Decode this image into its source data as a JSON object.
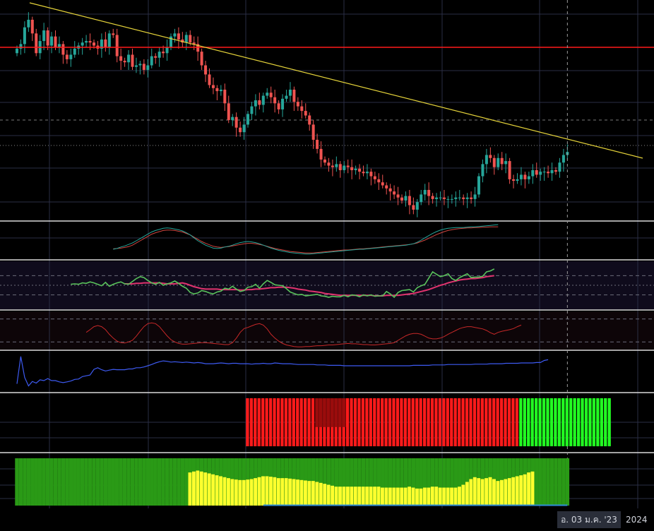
{
  "axis": {
    "crosshair_date_label": "อ. 03 ม.ค. '23",
    "year_label": "2024"
  },
  "colors": {
    "background": "#000000",
    "grid": "#2a2e45",
    "candle_up": "#26a69a",
    "candle_down": "#ef5350",
    "trendline": "#e5d33a",
    "horizontal_line": "#ff1a1a",
    "divider": "#d9d9d9",
    "osc1_a": "#26a69a",
    "osc1_b": "#d0453f",
    "rsi_line": "#59c25b",
    "rsi_ma": "#e0336e",
    "osc3": "#c62828",
    "osc4": "#3d5af1",
    "bar_red": "#ff1a1a",
    "bar_green": "#22ff22",
    "area_green": "#2a9a16",
    "area_yellow": "#ffff2e"
  },
  "chart_data": {
    "type": "candlestick",
    "price": {
      "closes": [
        78,
        81,
        92,
        97,
        88,
        75,
        83,
        90,
        80,
        86,
        79,
        81,
        74,
        71,
        74,
        78,
        80,
        82,
        83,
        82,
        80,
        78,
        84,
        79,
        88,
        87,
        73,
        70,
        69,
        74,
        66,
        67,
        68,
        64,
        67,
        73,
        72,
        76,
        75,
        79,
        86,
        88,
        84,
        82,
        87,
        82,
        81,
        76,
        67,
        61,
        54,
        52,
        50,
        51,
        42,
        31,
        33,
        26,
        23,
        28,
        35,
        40,
        44,
        41,
        47,
        49,
        46,
        42,
        38,
        45,
        47,
        51,
        43,
        40,
        37,
        34,
        28,
        18,
        12,
        5,
        3,
        1,
        0,
        2,
        -2,
        1,
        0,
        -2,
        -1,
        -3,
        -4,
        -3,
        -6,
        -8,
        -10,
        -12,
        -14,
        -16,
        -18,
        -20,
        -22,
        -19,
        -25,
        -28,
        -23,
        -18,
        -15,
        -19,
        -21,
        -20,
        -20,
        -21,
        -21,
        -21,
        -20,
        -20,
        -21,
        -20,
        -21,
        -18,
        -6,
        2,
        8,
        6,
        0,
        6,
        2,
        4,
        -8,
        -9,
        -8,
        -5,
        -8,
        -6,
        -2,
        -5,
        -3,
        -3,
        -4,
        -2,
        -3,
        3,
        8,
        10
      ],
      "trendline_label": "",
      "horizontal_level_label": ""
    },
    "oscillator_1": {
      "start_index": 25,
      "line_a": [
        27,
        29,
        33,
        36,
        40,
        44,
        50,
        56,
        62,
        68,
        74,
        78,
        81,
        84,
        85,
        84,
        82,
        80,
        77,
        72,
        66,
        58,
        50,
        44,
        38,
        34,
        30,
        29,
        30,
        33,
        35,
        38,
        42,
        45,
        47,
        48,
        47,
        45,
        42,
        38,
        34,
        30,
        27,
        24,
        22,
        20,
        18,
        17,
        16,
        15,
        14,
        14,
        15,
        16,
        17,
        18,
        19,
        20,
        21,
        22,
        23,
        24,
        25,
        26,
        27,
        27,
        28,
        29,
        30,
        31,
        32,
        33,
        34,
        35,
        36,
        37,
        38,
        40,
        42,
        46,
        52,
        58,
        64,
        70,
        75,
        79,
        82,
        84,
        85,
        86,
        86,
        86,
        87,
        88,
        88,
        89,
        90,
        91,
        92,
        93,
        94
      ],
      "line_b": [
        28,
        29,
        30,
        32,
        34,
        38,
        44,
        50,
        56,
        62,
        68,
        72,
        75,
        78,
        79,
        79,
        78,
        76,
        74,
        70,
        66,
        60,
        54,
        48,
        43,
        39,
        35,
        33,
        32,
        33,
        34,
        36,
        38,
        40,
        42,
        43,
        43,
        42,
        40,
        38,
        35,
        32,
        29,
        27,
        25,
        23,
        21,
        20,
        19,
        18,
        17,
        17,
        17,
        18,
        19,
        20,
        21,
        22,
        23,
        24,
        25,
        25,
        26,
        27,
        28,
        28,
        29,
        30,
        31,
        32,
        33,
        34,
        35,
        36,
        37,
        38,
        39,
        40,
        42,
        44,
        48,
        52,
        57,
        62,
        67,
        71,
        75,
        78,
        80,
        82,
        83,
        84,
        85,
        85,
        86,
        86,
        87,
        87,
        88,
        88,
        88
      ]
    },
    "rsi": {
      "start_index": 14,
      "levels": [
        70,
        50,
        30
      ],
      "values": [
        52,
        53,
        52,
        55,
        54,
        57,
        55,
        52,
        49,
        56,
        48,
        52,
        55,
        57,
        53,
        52,
        58,
        64,
        68,
        66,
        60,
        55,
        52,
        56,
        50,
        53,
        55,
        59,
        54,
        48,
        44,
        35,
        32,
        34,
        39,
        37,
        34,
        32,
        36,
        38,
        44,
        42,
        48,
        42,
        37,
        39,
        46,
        47,
        52,
        44,
        53,
        60,
        56,
        51,
        50,
        49,
        43,
        36,
        33,
        30,
        31,
        28,
        29,
        30,
        31,
        28,
        27,
        25,
        27,
        26,
        26,
        29,
        26,
        30,
        29,
        26,
        30,
        28,
        30,
        27,
        28,
        28,
        37,
        32,
        25,
        35,
        39,
        40,
        41,
        36,
        45,
        49,
        52,
        65,
        78,
        73,
        68,
        70,
        74,
        64,
        60,
        66,
        70,
        74,
        66,
        67,
        67,
        69,
        78,
        80,
        84
      ],
      "ma": [
        null,
        null,
        null,
        null,
        null,
        null,
        null,
        null,
        null,
        null,
        null,
        null,
        null,
        null,
        53,
        53,
        53,
        54,
        54,
        55,
        55,
        55,
        55,
        55,
        54,
        53,
        53,
        53,
        54,
        55,
        53,
        50,
        47,
        45,
        43,
        42,
        42,
        42,
        42,
        41,
        41,
        41,
        41,
        41,
        40,
        40,
        41,
        41,
        42,
        42,
        43,
        44,
        45,
        45,
        46,
        46,
        46,
        45,
        44,
        42,
        41,
        40,
        38,
        37,
        36,
        35,
        33,
        32,
        31,
        30,
        29,
        29,
        29,
        29,
        29,
        29,
        29,
        29,
        29,
        28,
        28,
        28,
        29,
        29,
        29,
        29,
        30,
        31,
        32,
        33,
        35,
        37,
        39,
        41,
        44,
        47,
        50,
        52,
        55,
        57,
        59,
        61,
        62,
        63,
        64,
        64,
        65,
        66,
        68,
        69,
        70
      ]
    },
    "oscillator_3": {
      "start_index": 18,
      "levels": [
        80,
        20
      ],
      "values": [
        45,
        52,
        60,
        63,
        60,
        52,
        40,
        30,
        22,
        18,
        17,
        20,
        24,
        35,
        48,
        60,
        68,
        70,
        68,
        60,
        48,
        36,
        26,
        20,
        16,
        14,
        14,
        15,
        16,
        17,
        18,
        18,
        17,
        16,
        15,
        14,
        13,
        13,
        18,
        30,
        45,
        55,
        58,
        62,
        66,
        68,
        64,
        54,
        40,
        30,
        22,
        16,
        12,
        10,
        8,
        7,
        7,
        8,
        8,
        9,
        10,
        10,
        11,
        12,
        12,
        13,
        14,
        15,
        16,
        15,
        15,
        14,
        13,
        13,
        12,
        12,
        13,
        14,
        15,
        16,
        18,
        24,
        30,
        36,
        40,
        42,
        42,
        40,
        35,
        30,
        28,
        28,
        30,
        34,
        40,
        45,
        50,
        55,
        58,
        60,
        60,
        58,
        56,
        54,
        50,
        44,
        40,
        45,
        48,
        50,
        52,
        55,
        60,
        64
      ]
    },
    "oscillator_4": {
      "start_index": 0,
      "values": [
        20,
        88,
        36,
        15,
        26,
        22,
        30,
        28,
        33,
        28,
        28,
        25,
        23,
        25,
        27,
        31,
        32,
        38,
        40,
        42,
        56,
        60,
        55,
        52,
        54,
        56,
        55,
        55,
        55,
        57,
        57,
        60,
        60,
        62,
        65,
        68,
        72,
        75,
        77,
        76,
        74,
        75,
        74,
        73,
        74,
        73,
        72,
        73,
        72,
        70,
        70,
        70,
        71,
        72,
        71,
        70,
        71,
        71,
        70,
        70,
        70,
        69,
        70,
        70,
        71,
        70,
        70,
        72,
        71,
        70,
        70,
        70,
        69,
        68,
        68,
        68,
        68,
        68,
        67,
        67,
        67,
        66,
        66,
        66,
        66,
        65,
        65,
        65,
        65,
        65,
        65,
        65,
        65,
        65,
        65,
        65,
        65,
        65,
        65,
        65,
        65,
        65,
        65,
        66,
        66,
        66,
        66,
        66,
        67,
        67,
        67,
        67,
        68,
        68,
        68,
        68,
        68,
        68,
        68,
        69,
        69,
        69,
        69,
        70,
        70,
        70,
        70,
        71,
        71,
        71,
        71,
        72,
        72,
        72,
        72,
        73,
        73,
        78,
        80
      ]
    },
    "histogram": {
      "red_start": 60,
      "red_end": 131,
      "dark_block_start": 78,
      "dark_block_end": 85,
      "green_start": 131,
      "green_end": 155
    },
    "area_chart": {
      "green_start": 0,
      "yellow_start": 45,
      "yellow_values": [
        70,
        72,
        74,
        72,
        70,
        68,
        66,
        64,
        62,
        60,
        58,
        56,
        55,
        54,
        54,
        55,
        56,
        58,
        60,
        62,
        62,
        61,
        60,
        58,
        58,
        58,
        57,
        56,
        55,
        54,
        53,
        52,
        52,
        50,
        48,
        46,
        44,
        42,
        40,
        40,
        40,
        40,
        40,
        40,
        40,
        40,
        40,
        40,
        40,
        40,
        38,
        38,
        38,
        38,
        38,
        38,
        38,
        40,
        38,
        36,
        36,
        38,
        38,
        40,
        40,
        38,
        38,
        38,
        38,
        38,
        40,
        44,
        50,
        56,
        60,
        58,
        56,
        58,
        60,
        56,
        52,
        54,
        56,
        58,
        60,
        62,
        64,
        66,
        70,
        72
      ]
    }
  }
}
